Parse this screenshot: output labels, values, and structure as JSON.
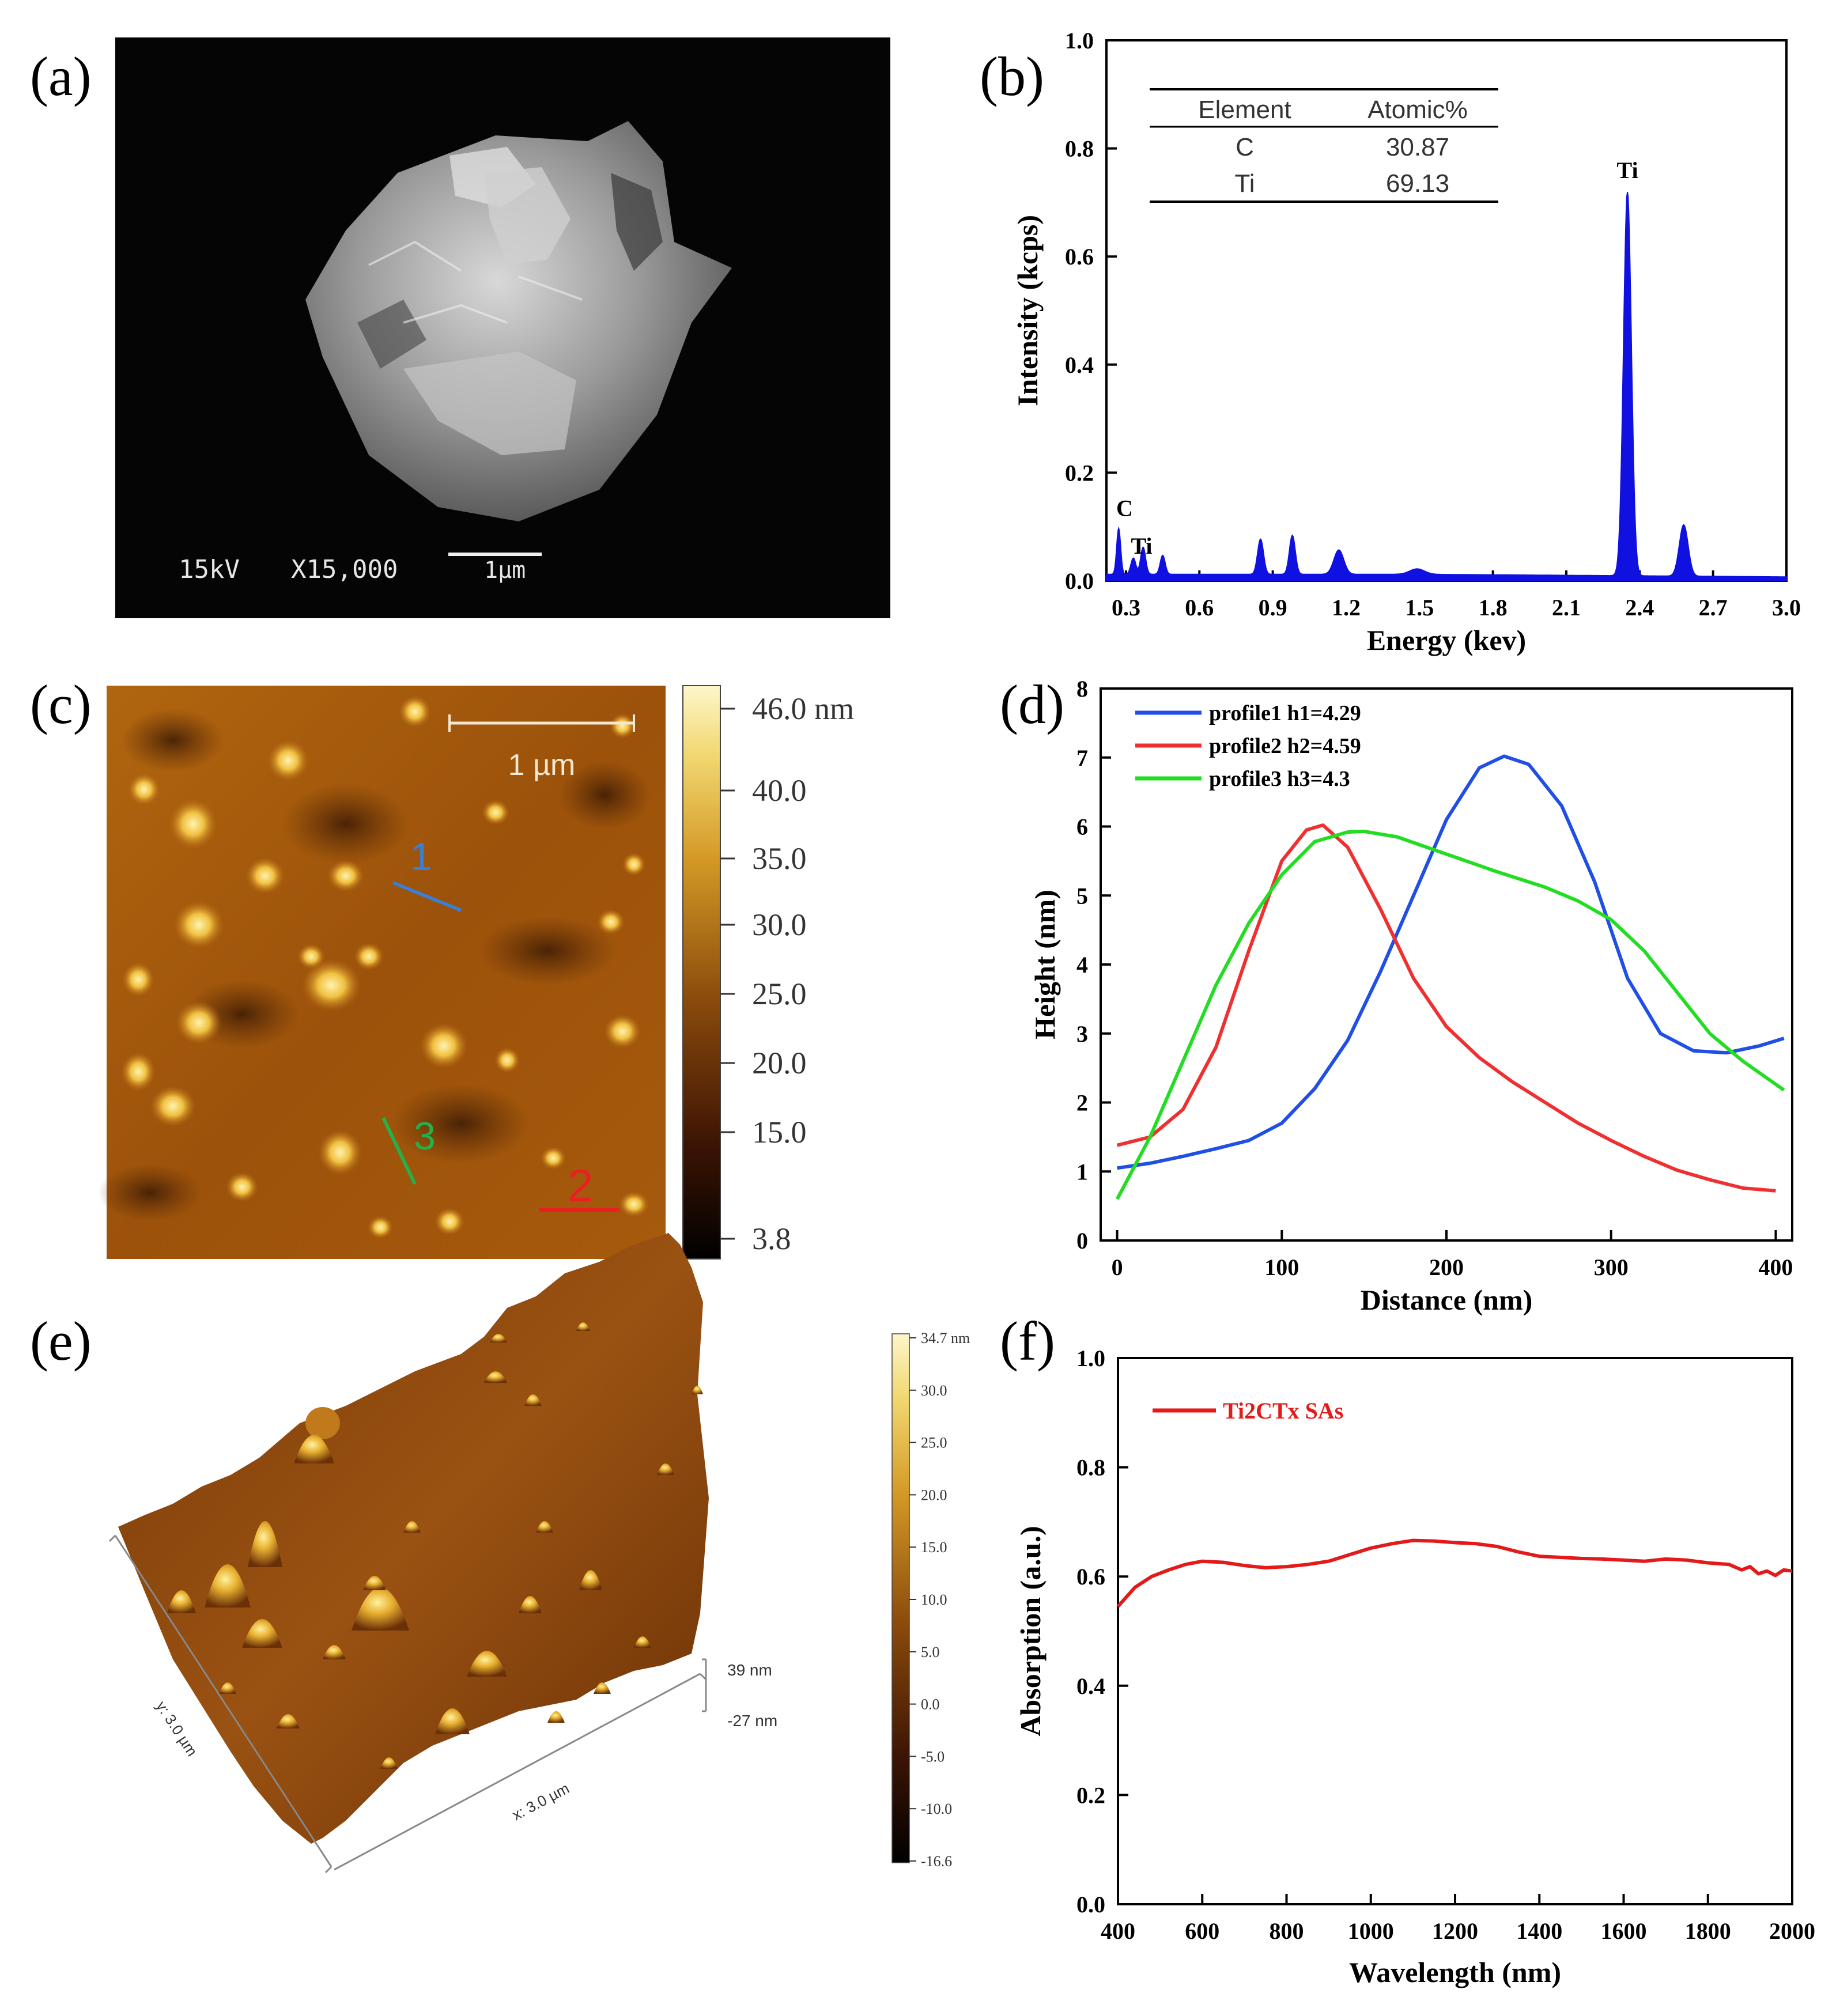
{
  "panel_labels": {
    "a": "(a)",
    "b": "(b)",
    "c": "(c)",
    "d": "(d)",
    "e": "(e)",
    "f": "(f)"
  },
  "sem": {
    "voltage": "15kV",
    "magnification": "X15,000",
    "scale_bar": "1µm"
  },
  "afm2d": {
    "scale_bar": "1 µm",
    "colorbar_ticks": [
      "46.0 nm",
      "40.0",
      "35.0",
      "30.0",
      "25.0",
      "20.0",
      "15.0",
      "3.8"
    ],
    "profiles": [
      {
        "label": "1",
        "color": "#3a7fd5"
      },
      {
        "label": "2",
        "color": "#e82020"
      },
      {
        "label": "3",
        "color": "#22b24c"
      }
    ]
  },
  "afm3d": {
    "x_label": "x: 3.0 µm",
    "y_label": "y: 3.0 µm",
    "z_top": "39 nm",
    "z_bottom": "-27 nm",
    "colorbar_ticks": [
      "34.7 nm",
      "30.0",
      "25.0",
      "20.0",
      "15.0",
      "10.0",
      "5.0",
      "0.0",
      "-5.0",
      "-10.0",
      "-16.6"
    ]
  },
  "chart_data": [
    {
      "id": "b",
      "type": "area",
      "title": "",
      "xlabel": "Energy (kev)",
      "ylabel": "Intensity (kcps)",
      "xlim": [
        0.22,
        3.0
      ],
      "ylim": [
        0,
        1.0
      ],
      "xticks": [
        "0.3",
        "0.6",
        "0.9",
        "1.2",
        "1.5",
        "1.8",
        "2.1",
        "2.4",
        "2.7",
        "3.0"
      ],
      "yticks": [
        "0.0",
        "0.2",
        "0.4",
        "0.6",
        "0.8",
        "1.0"
      ],
      "color": "#1010e0",
      "peaks": [
        {
          "x": 0.27,
          "y": 0.085,
          "w": 0.008
        },
        {
          "x": 0.33,
          "y": 0.03,
          "w": 0.01
        },
        {
          "x": 0.37,
          "y": 0.05,
          "w": 0.01
        },
        {
          "x": 0.45,
          "y": 0.035,
          "w": 0.01
        },
        {
          "x": 0.85,
          "y": 0.065,
          "w": 0.012
        },
        {
          "x": 0.98,
          "y": 0.072,
          "w": 0.012
        },
        {
          "x": 1.17,
          "y": 0.045,
          "w": 0.02
        },
        {
          "x": 1.49,
          "y": 0.01,
          "w": 0.03
        },
        {
          "x": 2.35,
          "y": 0.71,
          "w": 0.016
        },
        {
          "x": 2.58,
          "y": 0.095,
          "w": 0.018
        }
      ],
      "baseline": 0.012,
      "peak_labels": [
        {
          "text": "C",
          "x": 0.26,
          "y": 0.12
        },
        {
          "text": "Ti",
          "x": 0.32,
          "y": 0.05
        },
        {
          "text": "Ti",
          "x": 2.35,
          "y": 0.745
        }
      ],
      "table": {
        "headers": [
          "Element",
          "Atomic%"
        ],
        "rows": [
          [
            "C",
            "30.87"
          ],
          [
            "Ti",
            "69.13"
          ]
        ]
      }
    },
    {
      "id": "d",
      "type": "line",
      "title": "",
      "xlabel": "Distance (nm)",
      "ylabel": "Height (nm)",
      "xlim": [
        -10,
        410
      ],
      "ylim": [
        0,
        8
      ],
      "xticks": [
        0,
        100,
        200,
        300,
        400
      ],
      "yticks": [
        0,
        1,
        2,
        3,
        4,
        5,
        6,
        7,
        8
      ],
      "legend_position": "top-left",
      "series": [
        {
          "name": "profile1  h1=4.29",
          "color": "#1f4fe6",
          "x": [
            0,
            20,
            40,
            60,
            80,
            100,
            120,
            140,
            160,
            180,
            200,
            220,
            235,
            250,
            270,
            290,
            310,
            330,
            350,
            370,
            390,
            405
          ],
          "y": [
            1.05,
            1.12,
            1.22,
            1.33,
            1.45,
            1.7,
            2.2,
            2.9,
            3.9,
            5.0,
            6.1,
            6.85,
            7.02,
            6.9,
            6.3,
            5.2,
            3.8,
            3.0,
            2.75,
            2.72,
            2.82,
            2.93
          ]
        },
        {
          "name": "profile2  h2=4.59",
          "color": "#f03030",
          "x": [
            0,
            20,
            40,
            60,
            80,
            100,
            115,
            125,
            140,
            160,
            180,
            200,
            220,
            240,
            260,
            280,
            300,
            320,
            340,
            360,
            380,
            400
          ],
          "y": [
            1.38,
            1.5,
            1.9,
            2.8,
            4.2,
            5.5,
            5.95,
            6.02,
            5.7,
            4.8,
            3.8,
            3.1,
            2.65,
            2.3,
            2.0,
            1.7,
            1.45,
            1.22,
            1.02,
            0.88,
            0.76,
            0.72
          ]
        },
        {
          "name": "profile3  h3=4.3",
          "color": "#22dd22",
          "x": [
            0,
            20,
            40,
            60,
            80,
            100,
            120,
            140,
            150,
            170,
            200,
            230,
            260,
            280,
            300,
            320,
            340,
            360,
            380,
            405
          ],
          "y": [
            0.6,
            1.5,
            2.6,
            3.7,
            4.6,
            5.3,
            5.78,
            5.92,
            5.93,
            5.85,
            5.6,
            5.35,
            5.12,
            4.92,
            4.65,
            4.2,
            3.6,
            3.0,
            2.6,
            2.18
          ]
        }
      ]
    },
    {
      "id": "f",
      "type": "line",
      "title": "",
      "xlabel": "Wavelength (nm)",
      "ylabel": "Absorption (a.u.)",
      "xlim": [
        400,
        2000
      ],
      "ylim": [
        0,
        1.0
      ],
      "xticks": [
        400,
        600,
        800,
        1000,
        1200,
        1400,
        1600,
        1800,
        2000
      ],
      "yticks": [
        "0.0",
        "0.2",
        "0.4",
        "0.6",
        "0.8",
        "1.0"
      ],
      "legend_position": "top-left",
      "series": [
        {
          "name": "Ti2CTx SAs",
          "color": "#e41a1a",
          "x": [
            400,
            440,
            480,
            520,
            560,
            600,
            650,
            700,
            750,
            800,
            850,
            900,
            950,
            1000,
            1050,
            1100,
            1150,
            1200,
            1250,
            1300,
            1350,
            1400,
            1450,
            1500,
            1550,
            1600,
            1650,
            1700,
            1750,
            1800,
            1850,
            1880,
            1900,
            1920,
            1940,
            1960,
            1980,
            2000
          ],
          "y": [
            0.545,
            0.58,
            0.6,
            0.612,
            0.622,
            0.628,
            0.626,
            0.62,
            0.616,
            0.618,
            0.622,
            0.628,
            0.64,
            0.652,
            0.66,
            0.666,
            0.665,
            0.662,
            0.66,
            0.655,
            0.645,
            0.637,
            0.635,
            0.633,
            0.632,
            0.63,
            0.628,
            0.632,
            0.63,
            0.625,
            0.622,
            0.612,
            0.618,
            0.605,
            0.61,
            0.602,
            0.612,
            0.61
          ]
        }
      ]
    }
  ]
}
